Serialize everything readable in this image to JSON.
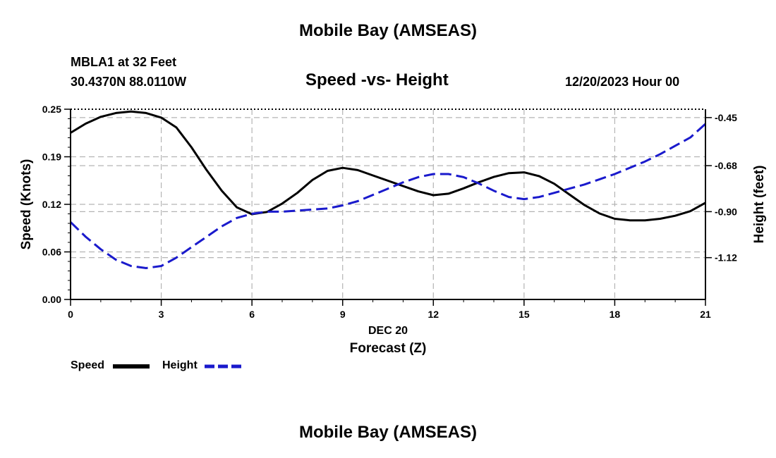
{
  "page": {
    "title_top": "Mobile Bay (AMSEAS)",
    "title_bottom": "Mobile Bay (AMSEAS)",
    "station": "MBLA1 at 32 Feet",
    "coords": "30.4370N  88.0110W",
    "datetime": "12/20/2023 Hour 00"
  },
  "legend": {
    "speed_label": "Speed",
    "height_label": "Height"
  },
  "colors": {
    "speed": "#000000",
    "height": "#1a1acc",
    "grid": "#b4b4b4"
  },
  "chart_data": {
    "type": "line",
    "title": "Speed -vs- Height",
    "xlabel": "Forecast (Z)",
    "xlabel_date": "DEC 20",
    "ylabel_left": "Speed (Knots)",
    "ylabel_right": "Height (feet)",
    "xlim": [
      0,
      21
    ],
    "ylim_left": [
      0,
      0.25
    ],
    "ylim_right": [
      -1.32,
      -0.41
    ],
    "x_ticks": [
      0,
      3,
      6,
      9,
      12,
      15,
      18,
      21
    ],
    "x_tick_labels": [
      "0",
      "3",
      "6",
      "9",
      "12",
      "15",
      "18",
      "21"
    ],
    "y_left_ticks": [
      0.0,
      0.0625,
      0.125,
      0.1875,
      0.25
    ],
    "y_left_tick_labels": [
      "0.00",
      "0.06",
      "0.12",
      "0.19",
      "0.25"
    ],
    "y_right_ticks": [
      -1.12,
      -0.9,
      -0.68,
      -0.45
    ],
    "y_right_tick_labels": [
      "-1.12",
      "-0.90",
      "-0.68",
      "-0.45"
    ],
    "grid": true,
    "series": [
      {
        "name": "Speed",
        "axis": "left",
        "style": "solid",
        "x": [
          0,
          0.5,
          1,
          1.5,
          2,
          2.5,
          3,
          3.5,
          4,
          4.5,
          5,
          5.5,
          6,
          6.5,
          7,
          7.5,
          8,
          8.5,
          9,
          9.5,
          10,
          10.5,
          11,
          11.5,
          12,
          12.5,
          13,
          13.5,
          14,
          14.5,
          15,
          15.5,
          16,
          16.5,
          17,
          17.5,
          18,
          18.5,
          19,
          19.5,
          20,
          20.5,
          21
        ],
        "values": [
          0.219,
          0.231,
          0.24,
          0.245,
          0.247,
          0.245,
          0.239,
          0.226,
          0.2,
          0.17,
          0.143,
          0.121,
          0.112,
          0.115,
          0.126,
          0.14,
          0.157,
          0.169,
          0.173,
          0.17,
          0.163,
          0.156,
          0.149,
          0.142,
          0.137,
          0.139,
          0.146,
          0.154,
          0.161,
          0.166,
          0.167,
          0.162,
          0.152,
          0.138,
          0.124,
          0.113,
          0.106,
          0.104,
          0.104,
          0.106,
          0.11,
          0.116,
          0.127
        ]
      },
      {
        "name": "Height",
        "axis": "right",
        "style": "dashed",
        "x": [
          0,
          0.5,
          1,
          1.5,
          2,
          2.5,
          3,
          3.5,
          4,
          4.5,
          5,
          5.5,
          6,
          6.5,
          7,
          7.5,
          8,
          8.5,
          9,
          9.5,
          10,
          10.5,
          11,
          11.5,
          12,
          12.5,
          13,
          13.5,
          14,
          14.5,
          15,
          15.5,
          16,
          16.5,
          17,
          17.5,
          18,
          18.5,
          19,
          19.5,
          20,
          20.5,
          21
        ],
        "values": [
          -0.95,
          -1.02,
          -1.08,
          -1.13,
          -1.16,
          -1.17,
          -1.16,
          -1.12,
          -1.07,
          -1.02,
          -0.97,
          -0.93,
          -0.91,
          -0.9,
          -0.9,
          -0.895,
          -0.89,
          -0.885,
          -0.87,
          -0.85,
          -0.82,
          -0.79,
          -0.76,
          -0.735,
          -0.72,
          -0.72,
          -0.735,
          -0.765,
          -0.8,
          -0.83,
          -0.84,
          -0.83,
          -0.81,
          -0.79,
          -0.77,
          -0.745,
          -0.72,
          -0.69,
          -0.66,
          -0.625,
          -0.585,
          -0.545,
          -0.48
        ]
      }
    ]
  }
}
